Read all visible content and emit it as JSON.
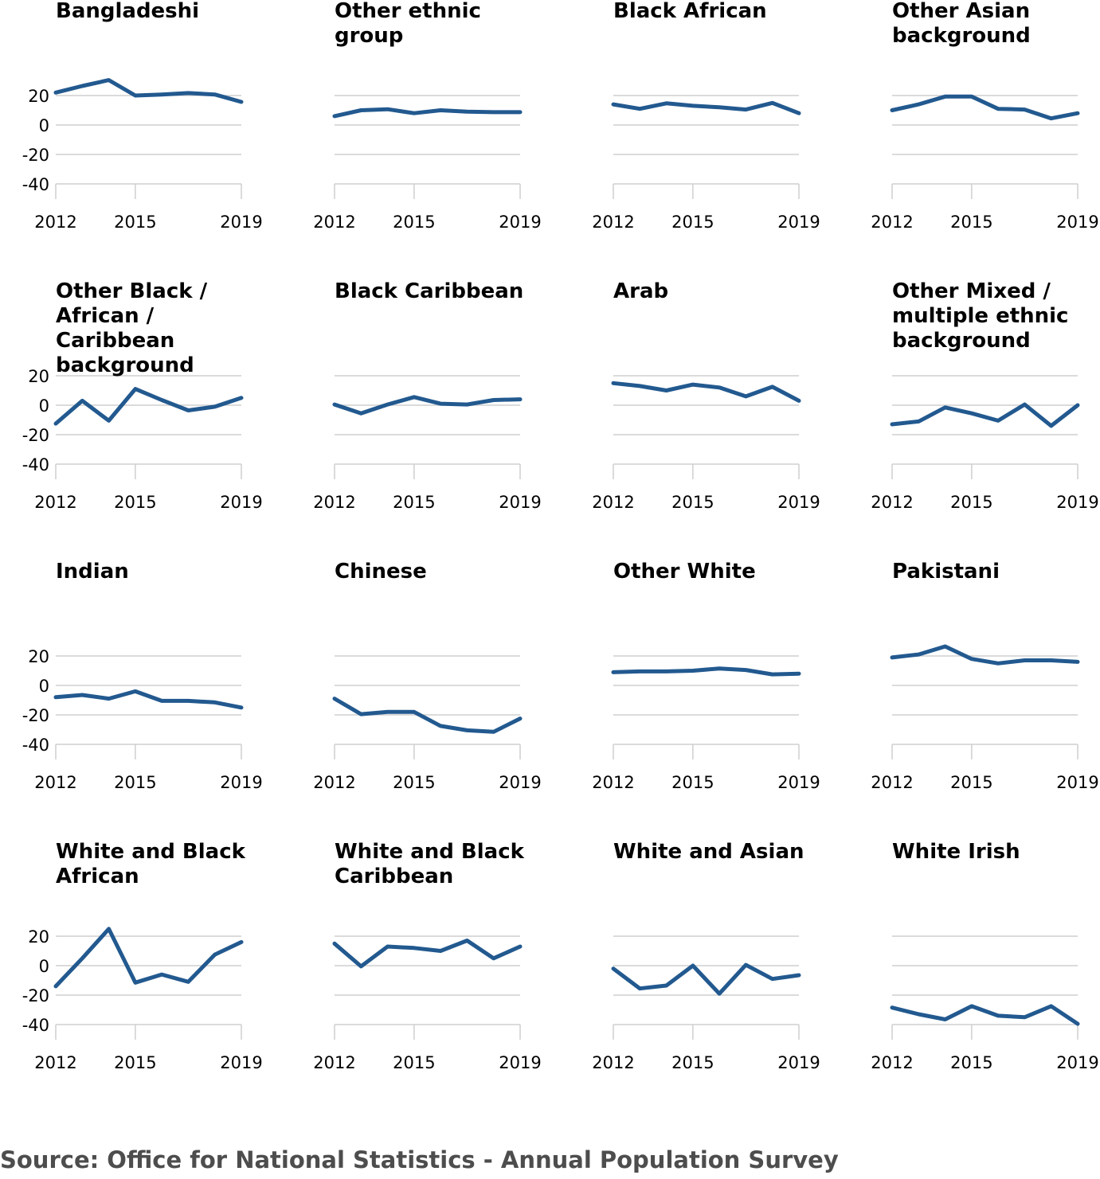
{
  "source": "Source: Office for National Statistics - Annual Population Survey",
  "line_color": "#22598f",
  "chart_data": {
    "type": "line",
    "layout": "small-multiples",
    "x": [
      2012,
      2013,
      2014,
      2015,
      2016,
      2017,
      2018,
      2019
    ],
    "x_ticks": [
      "2012",
      "2015",
      "2019"
    ],
    "y_ticks": [
      "20",
      "0",
      "-20",
      "-40"
    ],
    "ylim": [
      -50,
      40
    ],
    "grid": true,
    "panels": [
      {
        "title_lines": [
          "Bangladeshi"
        ],
        "values": [
          22,
          26.5,
          30.5,
          20,
          20.7,
          21.7,
          20.7,
          15.7
        ]
      },
      {
        "title_lines": [
          "Other ethnic",
          "group"
        ],
        "values": [
          6,
          10,
          10.7,
          8,
          10,
          9,
          8.7,
          8.7
        ]
      },
      {
        "title_lines": [
          "Black African"
        ],
        "values": [
          14,
          11,
          14.7,
          13,
          12,
          10.5,
          15,
          8
        ]
      },
      {
        "title_lines": [
          "Other Asian",
          "background"
        ],
        "values": [
          10,
          14,
          19.3,
          19.3,
          11,
          10.5,
          4.5,
          8
        ]
      },
      {
        "title_lines": [
          "Other Black /",
          "African /",
          "Caribbean",
          "background"
        ],
        "values": [
          -12.5,
          3,
          -10.5,
          11,
          3.5,
          -3.5,
          -1,
          5
        ]
      },
      {
        "title_lines": [
          "Black Caribbean"
        ],
        "values": [
          0.5,
          -5.5,
          0.5,
          5.5,
          1,
          0.5,
          3.5,
          4
        ]
      },
      {
        "title_lines": [
          "Arab"
        ],
        "values": [
          15,
          13,
          10,
          14,
          12,
          6,
          12.5,
          3
        ]
      },
      {
        "title_lines": [
          "Other Mixed /",
          "multiple ethnic",
          "background"
        ],
        "values": [
          -13,
          -11,
          -1.5,
          -5.5,
          -10.5,
          0.5,
          -14,
          0
        ]
      },
      {
        "title_lines": [
          "Indian"
        ],
        "values": [
          -8,
          -6.5,
          -9,
          -4,
          -10.5,
          -10.5,
          -11.5,
          -15
        ]
      },
      {
        "title_lines": [
          "Chinese"
        ],
        "values": [
          -9,
          -19.5,
          -18,
          -18,
          -27.5,
          -30.5,
          -31.5,
          -22.5
        ]
      },
      {
        "title_lines": [
          "Other White"
        ],
        "values": [
          9,
          9.5,
          9.5,
          10,
          11.5,
          10.5,
          7.5,
          8
        ]
      },
      {
        "title_lines": [
          "Pakistani"
        ],
        "values": [
          19,
          21,
          26.5,
          18,
          15,
          17,
          17,
          16
        ]
      },
      {
        "title_lines": [
          "White and Black",
          "African"
        ],
        "values": [
          -14,
          5,
          25,
          -11.5,
          -6,
          -11,
          7.5,
          16
        ]
      },
      {
        "title_lines": [
          "White and Black",
          "Caribbean"
        ],
        "values": [
          15,
          -0.5,
          13,
          12,
          10,
          17,
          5,
          13
        ]
      },
      {
        "title_lines": [
          "White and Asian"
        ],
        "values": [
          -2,
          -15.5,
          -13.5,
          0,
          -19,
          0.5,
          -9,
          -6.5
        ]
      },
      {
        "title_lines": [
          "White Irish"
        ],
        "values": [
          -28.5,
          -33,
          -36.5,
          -27.5,
          -34,
          -35,
          -27.5,
          -39.5
        ]
      }
    ]
  }
}
